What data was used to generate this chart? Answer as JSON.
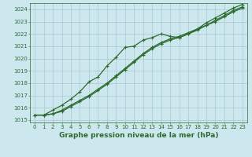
{
  "title": "Graphe pression niveau de la mer (hPa)",
  "bg_color": "#cce8ee",
  "grid_color": "#aac8d0",
  "line_color": "#2d6a2d",
  "xlim": [
    -0.5,
    23.5
  ],
  "ylim": [
    1014.8,
    1024.5
  ],
  "yticks": [
    1015,
    1016,
    1017,
    1018,
    1019,
    1020,
    1021,
    1022,
    1023,
    1024
  ],
  "xticks": [
    0,
    1,
    2,
    3,
    4,
    5,
    6,
    7,
    8,
    9,
    10,
    11,
    12,
    13,
    14,
    15,
    16,
    17,
    18,
    19,
    20,
    21,
    22,
    23
  ],
  "series_main": [
    1015.4,
    1015.4,
    1015.8,
    1016.2,
    1016.7,
    1017.3,
    1018.1,
    1018.5,
    1019.4,
    1020.1,
    1020.9,
    1021.0,
    1021.5,
    1021.7,
    1022.0,
    1021.8,
    1021.7,
    1022.0,
    1022.4,
    1022.9,
    1023.3,
    1023.7,
    1024.1,
    1024.4
  ],
  "series_low1": [
    1015.4,
    1015.4,
    1015.5,
    1015.8,
    1016.2,
    1016.6,
    1017.0,
    1017.5,
    1018.0,
    1018.6,
    1019.2,
    1019.8,
    1020.4,
    1020.9,
    1021.3,
    1021.6,
    1021.8,
    1022.1,
    1022.4,
    1022.7,
    1023.1,
    1023.5,
    1023.9,
    1024.2
  ],
  "series_low2": [
    1015.4,
    1015.4,
    1015.5,
    1015.7,
    1016.1,
    1016.5,
    1016.9,
    1017.4,
    1017.9,
    1018.5,
    1019.1,
    1019.7,
    1020.3,
    1020.8,
    1021.2,
    1021.5,
    1021.7,
    1022.0,
    1022.3,
    1022.7,
    1023.0,
    1023.4,
    1023.8,
    1024.1
  ],
  "marker": "+",
  "markersize": 3.5,
  "linewidth": 0.9,
  "title_fontsize": 6.5,
  "tick_fontsize": 5.0,
  "tick_color": "#2d6a2d"
}
